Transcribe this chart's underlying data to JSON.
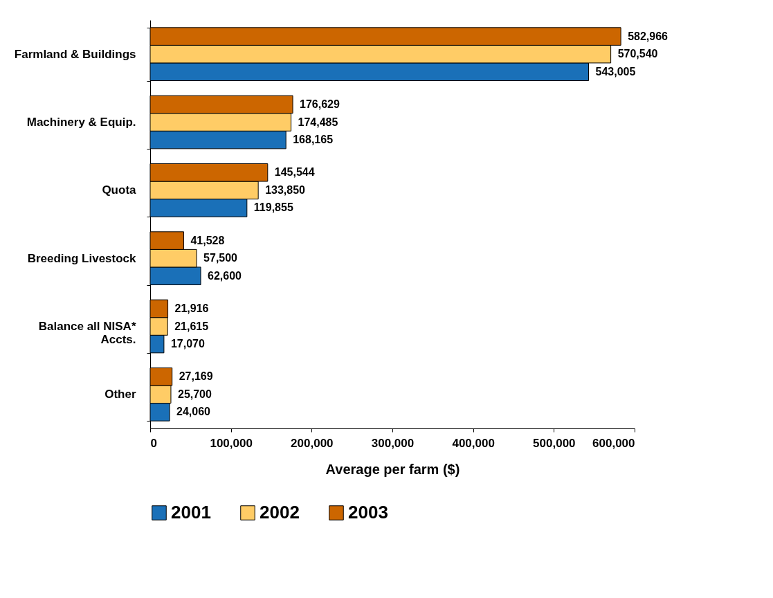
{
  "chart_data": {
    "type": "bar",
    "orientation": "horizontal",
    "xlabel": "Average per farm ($)",
    "categories": [
      "Farmland & Buildings",
      "Machinery & Equip.",
      "Quota",
      "Breeding Livestock",
      "Balance all NISA*\nAccts.",
      "Other"
    ],
    "series": [
      {
        "name": "2001",
        "color": "#1a70b8",
        "values": [
          543005,
          168165,
          119855,
          62600,
          17070,
          24060
        ],
        "value_labels": [
          "543,005",
          "168,165",
          "119,855",
          "62,600",
          "17,070",
          "24,060"
        ]
      },
      {
        "name": "2002",
        "color": "#ffcc66",
        "values": [
          570540,
          174485,
          133850,
          57500,
          21615,
          25700
        ],
        "value_labels": [
          "570,540",
          "174,485",
          "133,850",
          "57,500",
          "21,615",
          "25,700"
        ]
      },
      {
        "name": "2003",
        "color": "#cc6600",
        "values": [
          582966,
          176629,
          145544,
          41528,
          21916,
          27169
        ],
        "value_labels": [
          "582,966",
          "176,629",
          "145,544",
          "41,528",
          "21,916",
          "27,169"
        ]
      }
    ],
    "xlim": [
      0,
      600000
    ],
    "xticks": [
      0,
      {
        "value": 100000,
        "label": "100,000"
      },
      {
        "value": 200000,
        "label": "200,000"
      },
      {
        "value": 300000,
        "label": "300,000"
      },
      {
        "value": 400000,
        "label": "400,000"
      },
      {
        "value": 500000,
        "label": "500,000"
      },
      {
        "value": 600000,
        "label": "600,000"
      }
    ],
    "grid": false,
    "legend": "bottom"
  }
}
